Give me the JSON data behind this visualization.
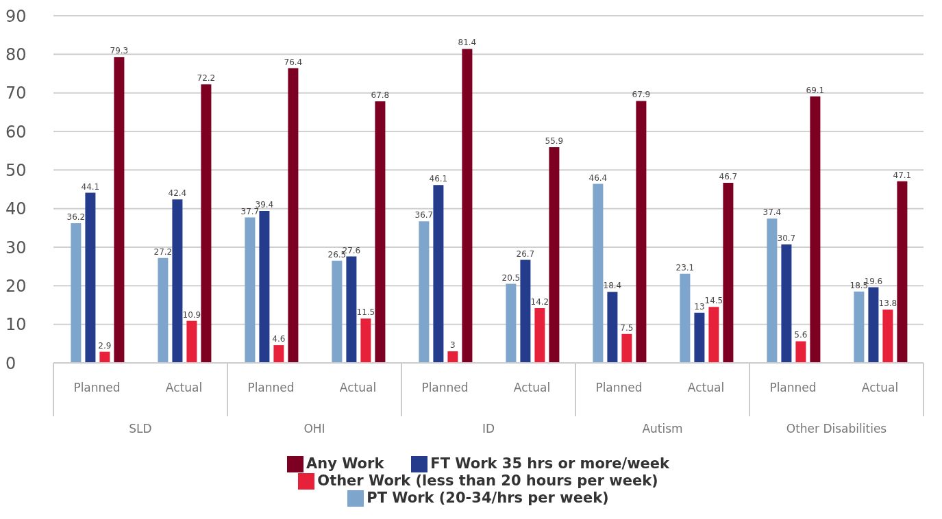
{
  "chart_data": {
    "type": "bar",
    "categories": [
      "Planned",
      "Actual",
      "Planned",
      "Actual",
      "Planned",
      "Actual",
      "Planned",
      "Actual",
      "Planned",
      "Actual"
    ],
    "annotations": [
      "SLD",
      "OHI",
      "ID",
      "Autism",
      "Other Disabilities"
    ],
    "series": [
      {
        "name": "PT Work (20-34/hrs per week)",
        "color": "#7ea6cc",
        "values": [
          36.2,
          27.2,
          37.7,
          26.5,
          36.7,
          20.5,
          46.4,
          23.1,
          37.4,
          18.5
        ]
      },
      {
        "name": "FT Work 35 hrs or more/week",
        "color": "#253c8c",
        "values": [
          44.1,
          42.4,
          39.4,
          27.6,
          46.1,
          26.7,
          18.4,
          13,
          30.7,
          19.6
        ]
      },
      {
        "name": "Other Work (less than 20 hours per week)",
        "color": "#e8213a",
        "values": [
          2.9,
          10.9,
          4.6,
          11.5,
          3,
          14.2,
          7.5,
          14.5,
          5.6,
          13.8
        ]
      },
      {
        "name": "Any Work",
        "color": "#7d0022",
        "values": [
          79.3,
          72.2,
          76.4,
          67.8,
          81.4,
          55.9,
          67.9,
          46.7,
          69.1,
          47.1
        ]
      }
    ],
    "ylim": [
      0,
      90
    ],
    "yticks": [
      0,
      10,
      20,
      30,
      40,
      50,
      60,
      70,
      80,
      90
    ],
    "grid": "y",
    "legend": "bottom",
    "data_labels": true
  }
}
